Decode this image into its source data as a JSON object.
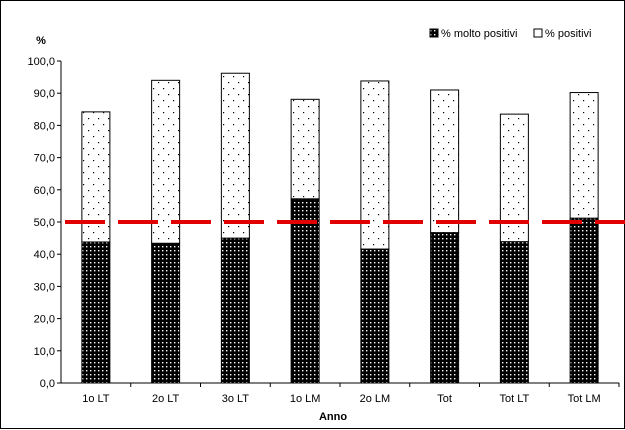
{
  "chart_data": {
    "type": "bar",
    "stacked": true,
    "title": "",
    "ylabel": "%",
    "xlabel": "Anno",
    "ylim": [
      0,
      100
    ],
    "ytick_step": 10,
    "ytick_labels": [
      "0,0",
      "10,0",
      "20,0",
      "30,0",
      "40,0",
      "50,0",
      "60,0",
      "70,0",
      "80,0",
      "90,0",
      "100,0"
    ],
    "categories": [
      "1o LT",
      "2o LT",
      "3o LT",
      "1o LM",
      "2o LM",
      "Tot",
      "Tot LT",
      "Tot LM"
    ],
    "series": [
      {
        "name": "% molto positivi",
        "pattern": "dense-dots",
        "values": [
          43.8,
          43.4,
          45.0,
          57.2,
          41.6,
          46.7,
          43.9,
          51.2
        ]
      },
      {
        "name": "% positivi",
        "pattern": "sparse-dots",
        "values": [
          40.4,
          50.6,
          51.2,
          30.9,
          52.2,
          44.3,
          39.6,
          39.0
        ]
      }
    ],
    "reference_line": {
      "value": 50,
      "color": "#e00000",
      "style": "dashed"
    },
    "legend_position": "top-right",
    "grid": false
  }
}
